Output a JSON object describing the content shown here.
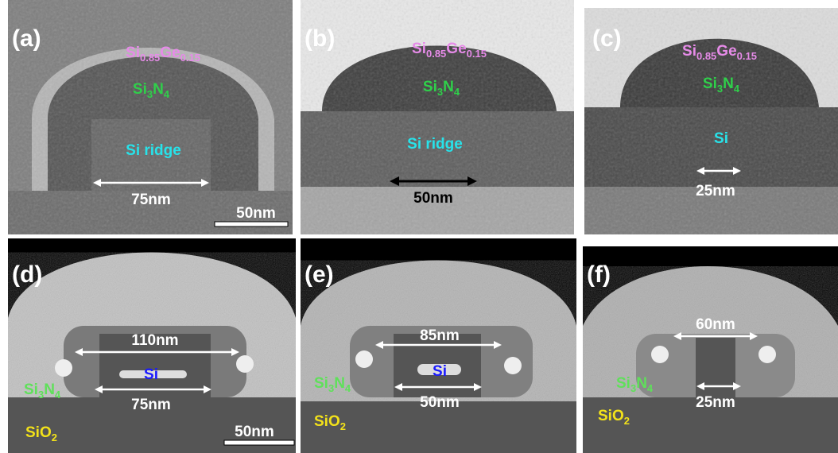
{
  "panels": [
    {
      "label": "(a)",
      "cladding": [
        "Si",
        "0.85",
        "Ge",
        "0.15"
      ],
      "spacer": [
        "Si",
        "3",
        "N",
        "4"
      ],
      "core": "Si ridge",
      "width": "75nm",
      "scale_bar": "50nm"
    },
    {
      "label": "(b)",
      "cladding": [
        "Si",
        "0.85",
        "Ge",
        "0.15"
      ],
      "spacer": [
        "Si",
        "3",
        "N",
        "4"
      ],
      "core": "Si ridge",
      "width": "50nm"
    },
    {
      "label": "(c)",
      "cladding": [
        "Si",
        "0.85",
        "Ge",
        "0.15"
      ],
      "spacer": [
        "Si",
        "3",
        "N",
        "4"
      ],
      "core": "Si",
      "width": "25nm"
    },
    {
      "label": "(d)",
      "outer_width": "110nm",
      "core": "Si",
      "inner_width": "75nm",
      "spacer": [
        "Si",
        "3",
        "N",
        "4"
      ],
      "substrate": [
        "SiO",
        "2"
      ],
      "scale_bar": "50nm"
    },
    {
      "label": "(e)",
      "outer_width": "85nm",
      "core": "Si",
      "inner_width": "50nm",
      "spacer": [
        "Si",
        "3",
        "N",
        "4"
      ],
      "substrate": [
        "SiO",
        "2"
      ]
    },
    {
      "label": "(f)",
      "outer_width": "60nm",
      "inner_width": "25nm",
      "spacer": [
        "Si",
        "3",
        "N",
        "4"
      ],
      "substrate": [
        "SiO",
        "2"
      ]
    }
  ]
}
